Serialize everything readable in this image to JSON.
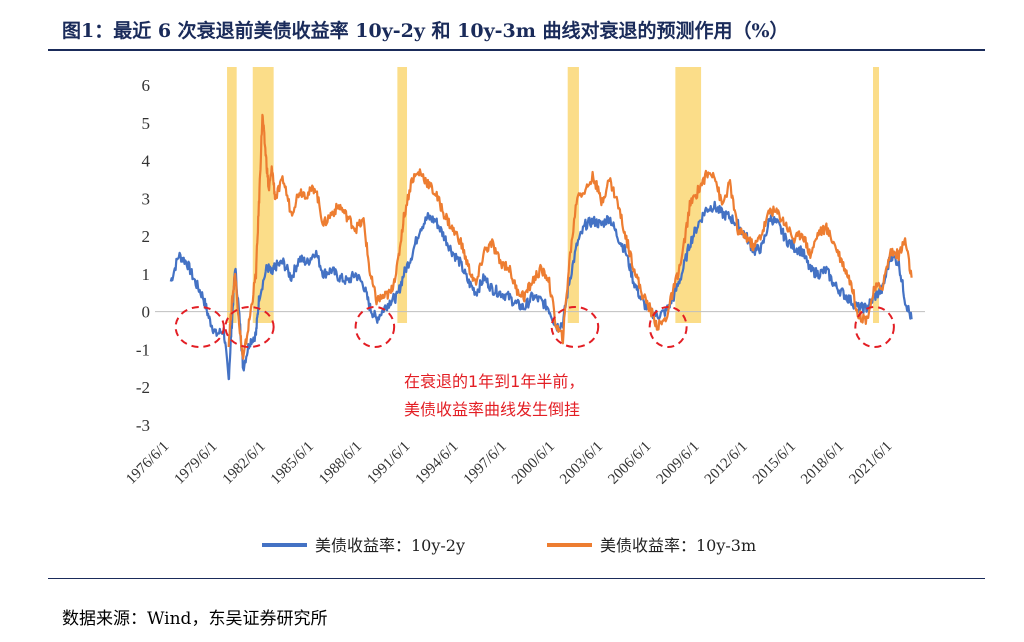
{
  "title": "图1：最近 6 次衰退前美债收益率 10y-2y 和 10y-3m 曲线对衰退的预测作用（%）",
  "source": "数据来源：Wind，东吴证券研究所",
  "chart_data": {
    "type": "line",
    "title": "图1：最近 6 次衰退前美债收益率 10y-2y 和 10y-3m 曲线对衰退的预测作用（%）",
    "ylim": [
      -3,
      6
    ],
    "yticks": [
      "-3",
      "-2",
      "-1",
      "0",
      "1",
      "2",
      "3",
      "4",
      "5",
      "6"
    ],
    "xlim": [
      1976.45,
      2023.0
    ],
    "xtick_labels": [
      "1976/6/1",
      "1979/6/1",
      "1982/6/1",
      "1985/6/1",
      "1988/6/1",
      "1991/6/1",
      "1994/6/1",
      "1997/6/1",
      "2000/6/1",
      "2003/6/1",
      "2006/6/1",
      "2009/6/1",
      "2012/6/1",
      "2015/6/1",
      "2018/6/1",
      "2021/6/1"
    ],
    "xtick_years": [
      1976.42,
      1979.42,
      1982.42,
      1985.42,
      1988.42,
      1991.42,
      1994.42,
      1997.42,
      2000.42,
      2003.42,
      2006.42,
      2009.42,
      2012.42,
      2015.42,
      2018.42,
      2021.42
    ],
    "recessions": [
      [
        1980.0,
        1980.6
      ],
      [
        1981.6,
        1982.9
      ],
      [
        1990.6,
        1991.2
      ],
      [
        2001.2,
        2001.9
      ],
      [
        2007.9,
        2009.5
      ],
      [
        2020.2,
        2020.4
      ]
    ],
    "series": [
      {
        "name": "美债收益率：10y-2y",
        "color": "#4472c4",
        "x": [
          1976.5,
          1977.0,
          1977.5,
          1978.0,
          1978.5,
          1978.9,
          1979.3,
          1979.8,
          1980.1,
          1980.3,
          1980.5,
          1980.8,
          1981.0,
          1981.4,
          1981.8,
          1982.0,
          1982.5,
          1982.8,
          1983.0,
          1983.5,
          1984.0,
          1984.5,
          1985.0,
          1985.5,
          1986.0,
          1986.5,
          1987.0,
          1987.5,
          1988.0,
          1988.5,
          1988.9,
          1989.3,
          1989.8,
          1990.2,
          1990.6,
          1991.0,
          1991.5,
          1992.0,
          1992.5,
          1993.0,
          1993.5,
          1994.0,
          1994.5,
          1995.0,
          1995.5,
          1996.0,
          1996.5,
          1997.0,
          1997.5,
          1998.0,
          1998.5,
          1999.0,
          1999.5,
          2000.0,
          2000.5,
          2000.9,
          2001.3,
          2001.8,
          2002.3,
          2002.8,
          2003.3,
          2003.8,
          2004.3,
          2004.8,
          2005.3,
          2005.8,
          2006.3,
          2006.8,
          2007.3,
          2007.8,
          2008.3,
          2008.8,
          2009.3,
          2009.8,
          2010.3,
          2010.8,
          2011.3,
          2011.8,
          2012.3,
          2012.8,
          2013.3,
          2013.8,
          2014.3,
          2014.8,
          2015.3,
          2015.8,
          2016.3,
          2016.8,
          2017.3,
          2017.8,
          2018.3,
          2018.8,
          2019.3,
          2019.8,
          2020.3,
          2020.8,
          2021.3,
          2021.8,
          2022.2,
          2022.6
        ],
        "y": [
          0.8,
          1.5,
          1.3,
          0.8,
          0.4,
          -0.2,
          -0.6,
          -0.5,
          -1.8,
          -0.3,
          1.2,
          -0.3,
          -1.5,
          -0.8,
          -0.6,
          0.4,
          1.2,
          1.0,
          1.2,
          1.3,
          0.9,
          1.4,
          1.3,
          1.6,
          1.0,
          1.1,
          0.9,
          0.8,
          1.0,
          0.7,
          0.1,
          -0.2,
          0.1,
          0.3,
          0.4,
          1.0,
          1.5,
          2.2,
          2.5,
          2.4,
          2.0,
          1.6,
          1.3,
          0.8,
          0.5,
          0.9,
          0.6,
          0.5,
          0.4,
          0.2,
          0.1,
          0.4,
          0.3,
          0.1,
          -0.4,
          -0.3,
          0.8,
          1.8,
          2.3,
          2.4,
          2.3,
          2.5,
          2.0,
          1.6,
          0.8,
          0.3,
          0.0,
          -0.1,
          0.0,
          0.4,
          1.0,
          1.8,
          2.3,
          2.7,
          2.8,
          2.6,
          2.5,
          2.3,
          2.0,
          1.6,
          1.7,
          2.5,
          2.3,
          1.9,
          1.7,
          1.6,
          1.1,
          1.0,
          1.1,
          0.7,
          0.5,
          0.3,
          0.1,
          0.1,
          0.4,
          0.6,
          1.5,
          1.3,
          0.3,
          -0.2
        ]
      },
      {
        "name": "美债收益率：10y-3m",
        "color": "#ed7d31",
        "x": [
          1980.1,
          1980.3,
          1980.5,
          1980.8,
          1981.0,
          1981.4,
          1981.8,
          1982.0,
          1982.2,
          1982.4,
          1982.6,
          1982.8,
          1983.0,
          1983.5,
          1984.0,
          1984.5,
          1985.0,
          1985.5,
          1986.0,
          1986.5,
          1987.0,
          1987.5,
          1988.0,
          1988.5,
          1988.9,
          1989.3,
          1989.8,
          1990.2,
          1990.6,
          1991.0,
          1991.5,
          1992.0,
          1992.5,
          1993.0,
          1993.5,
          1994.0,
          1994.5,
          1995.0,
          1995.5,
          1996.0,
          1996.5,
          1997.0,
          1997.5,
          1998.0,
          1998.5,
          1999.0,
          1999.5,
          2000.0,
          2000.5,
          2000.9,
          2001.3,
          2001.8,
          2002.3,
          2002.8,
          2003.3,
          2003.8,
          2004.3,
          2004.8,
          2005.3,
          2005.8,
          2006.3,
          2006.8,
          2007.3,
          2007.8,
          2008.3,
          2008.8,
          2009.3,
          2009.8,
          2010.3,
          2010.8,
          2011.3,
          2011.8,
          2012.3,
          2012.8,
          2013.3,
          2013.8,
          2014.3,
          2014.8,
          2015.3,
          2015.8,
          2016.3,
          2016.8,
          2017.3,
          2017.8,
          2018.3,
          2018.8,
          2019.3,
          2019.8,
          2020.3,
          2020.8,
          2021.3,
          2021.8,
          2022.2,
          2022.6
        ],
        "y": [
          -0.8,
          0.2,
          1.0,
          -0.5,
          -1.3,
          -0.2,
          1.0,
          3.0,
          5.2,
          4.2,
          3.2,
          3.8,
          3.0,
          3.5,
          2.6,
          3.2,
          3.1,
          3.3,
          2.3,
          2.6,
          2.8,
          2.5,
          2.2,
          2.4,
          1.0,
          0.3,
          0.4,
          0.5,
          1.2,
          2.5,
          3.5,
          3.7,
          3.4,
          3.1,
          2.6,
          2.2,
          1.9,
          1.2,
          0.7,
          1.6,
          1.8,
          1.3,
          1.2,
          0.6,
          0.4,
          0.8,
          1.1,
          0.9,
          -0.4,
          -0.7,
          1.3,
          3.1,
          3.2,
          3.6,
          2.9,
          3.5,
          2.9,
          2.0,
          1.2,
          0.5,
          0.1,
          -0.4,
          -0.2,
          0.6,
          1.4,
          2.8,
          3.2,
          3.6,
          3.7,
          2.8,
          3.4,
          2.1,
          2.0,
          1.7,
          2.1,
          2.7,
          2.6,
          2.3,
          1.9,
          2.1,
          1.5,
          2.1,
          2.2,
          1.8,
          1.3,
          0.8,
          -0.1,
          -0.2,
          0.6,
          0.7,
          1.6,
          1.5,
          1.9,
          0.9
        ]
      }
    ],
    "annotation_lines": [
      "在衰退的1年到1年半前，",
      "美债收益率曲线发生倒挂"
    ],
    "highlight_ellipses_years": [
      [
        1976.8,
        1979.8
      ],
      [
        1979.9,
        1982.9
      ],
      [
        1988.0,
        1990.4
      ],
      [
        2000.2,
        2003.1
      ],
      [
        2006.3,
        2008.6
      ],
      [
        2019.1,
        2021.5
      ]
    ],
    "legend_position": "bottom-center"
  }
}
